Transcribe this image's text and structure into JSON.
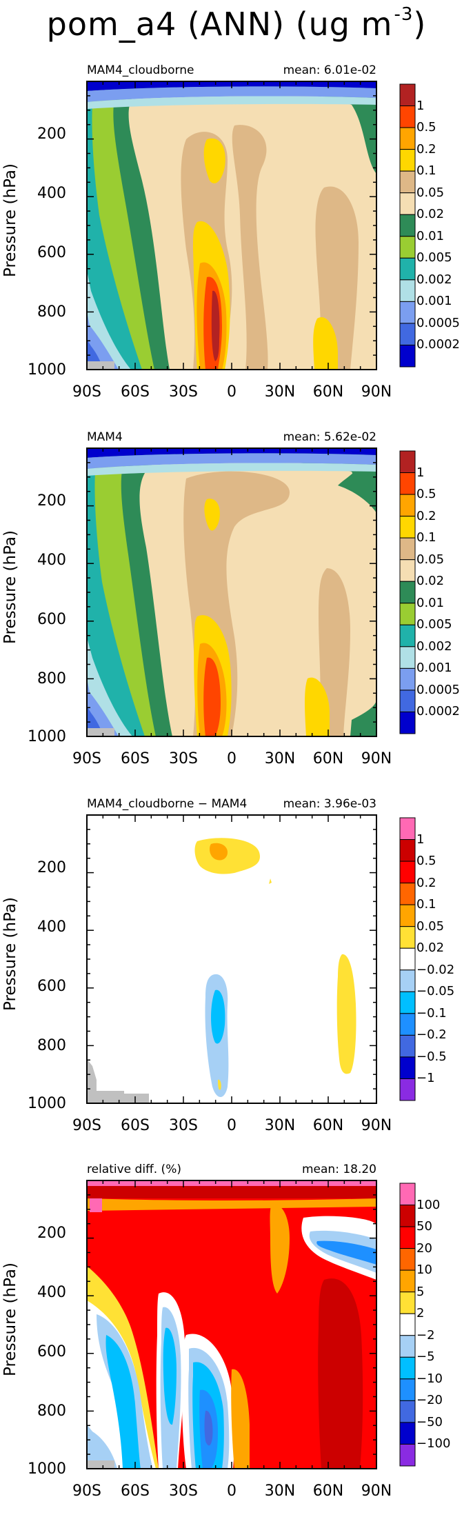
{
  "title": "pom_a4 (ANN) (ug m",
  "title_exp": "-3",
  "panels": [
    {
      "title": "MAM4_cloudborne",
      "mean": "mean: 6.01e-02",
      "ylabel": "Pressure (hPa)",
      "xticks": [
        "90S",
        "60S",
        "30S",
        "0",
        "30N",
        "60N",
        "90N"
      ],
      "yticks": [
        "200",
        "400",
        "600",
        "800",
        "1000"
      ],
      "colorbar": {
        "labels": [
          "1",
          "0.5",
          "0.2",
          "0.1",
          "0.05",
          "0.02",
          "0.01",
          "0.005",
          "0.002",
          "0.001",
          "0.0005",
          "0.0002"
        ],
        "colors": [
          "#b22222",
          "#ff4500",
          "#ffa500",
          "#ffd700",
          "#deb887",
          "#f5deb3",
          "#2e8b57",
          "#9acd32",
          "#20b2aa",
          "#b0e0e6",
          "#7b9ef0",
          "#4169e1",
          "#0000cd"
        ]
      }
    },
    {
      "title": "MAM4",
      "mean": "mean: 5.62e-02",
      "ylabel": "Pressure (hPa)",
      "xticks": [
        "90S",
        "60S",
        "30S",
        "0",
        "30N",
        "60N",
        "90N"
      ],
      "yticks": [
        "200",
        "400",
        "600",
        "800",
        "1000"
      ],
      "colorbar": {
        "labels": [
          "1",
          "0.5",
          "0.2",
          "0.1",
          "0.05",
          "0.02",
          "0.01",
          "0.005",
          "0.002",
          "0.001",
          "0.0005",
          "0.0002"
        ],
        "colors": [
          "#b22222",
          "#ff4500",
          "#ffa500",
          "#ffd700",
          "#deb887",
          "#f5deb3",
          "#2e8b57",
          "#9acd32",
          "#20b2aa",
          "#b0e0e6",
          "#7b9ef0",
          "#4169e1",
          "#0000cd"
        ]
      }
    },
    {
      "title": "MAM4_cloudborne − MAM4",
      "mean": "mean: 3.96e-03",
      "ylabel": "Pressure (hPa)",
      "xticks": [
        "90S",
        "60S",
        "30S",
        "0",
        "30N",
        "60N",
        "90N"
      ],
      "yticks": [
        "200",
        "400",
        "600",
        "800",
        "1000"
      ],
      "colorbar": {
        "labels": [
          "1",
          "0.5",
          "0.2",
          "0.1",
          "0.05",
          "0.02",
          "−0.02",
          "−0.05",
          "−0.1",
          "−0.2",
          "−0.5",
          "−1"
        ],
        "colors": [
          "#ff69b4",
          "#cc0000",
          "#ff0000",
          "#ff6600",
          "#ffa500",
          "#ffe135",
          "#ffffff",
          "#a6d0f5",
          "#00bfff",
          "#1e90ff",
          "#4169e1",
          "#0000cd",
          "#8a2be2"
        ]
      }
    },
    {
      "title": "relative diff. (%)",
      "mean": "mean: 18.20",
      "ylabel": "Pressure (hPa)",
      "xticks": [
        "90S",
        "60S",
        "30S",
        "0",
        "30N",
        "60N",
        "90N"
      ],
      "yticks": [
        "200",
        "400",
        "600",
        "800",
        "1000"
      ],
      "colorbar": {
        "labels": [
          "100",
          "50",
          "20",
          "10",
          "5",
          "2",
          "−2",
          "−5",
          "−10",
          "−20",
          "−50",
          "−100"
        ],
        "colors": [
          "#ff69b4",
          "#cc0000",
          "#ff0000",
          "#ff6600",
          "#ffa500",
          "#ffe135",
          "#ffffff",
          "#a6d0f5",
          "#00bfff",
          "#1e90ff",
          "#4169e1",
          "#0000cd",
          "#8a2be2"
        ]
      }
    }
  ],
  "chart_data": [
    {
      "type": "heatmap",
      "title": "MAM4_cloudborne",
      "ylabel": "Pressure (hPa)",
      "xlim": [
        -90,
        90
      ],
      "ylim": [
        1000,
        0
      ],
      "mean": 0.0601,
      "levels": [
        0.0002,
        0.0005,
        0.001,
        0.002,
        0.005,
        0.01,
        0.02,
        0.05,
        0.1,
        0.2,
        0.5,
        1
      ]
    },
    {
      "type": "heatmap",
      "title": "MAM4",
      "ylabel": "Pressure (hPa)",
      "xlim": [
        -90,
        90
      ],
      "ylim": [
        1000,
        0
      ],
      "mean": 0.0562,
      "levels": [
        0.0002,
        0.0005,
        0.001,
        0.002,
        0.005,
        0.01,
        0.02,
        0.05,
        0.1,
        0.2,
        0.5,
        1
      ]
    },
    {
      "type": "heatmap",
      "title": "MAM4_cloudborne − MAM4",
      "ylabel": "Pressure (hPa)",
      "xlim": [
        -90,
        90
      ],
      "ylim": [
        1000,
        0
      ],
      "mean": 0.00396,
      "levels": [
        -1,
        -0.5,
        -0.2,
        -0.1,
        -0.05,
        -0.02,
        0.02,
        0.05,
        0.1,
        0.2,
        0.5,
        1
      ]
    },
    {
      "type": "heatmap",
      "title": "relative diff. (%)",
      "ylabel": "Pressure (hPa)",
      "xlim": [
        -90,
        90
      ],
      "ylim": [
        1000,
        0
      ],
      "mean": 18.2,
      "levels": [
        -100,
        -50,
        -20,
        -10,
        -5,
        -2,
        2,
        5,
        10,
        20,
        50,
        100
      ]
    }
  ]
}
